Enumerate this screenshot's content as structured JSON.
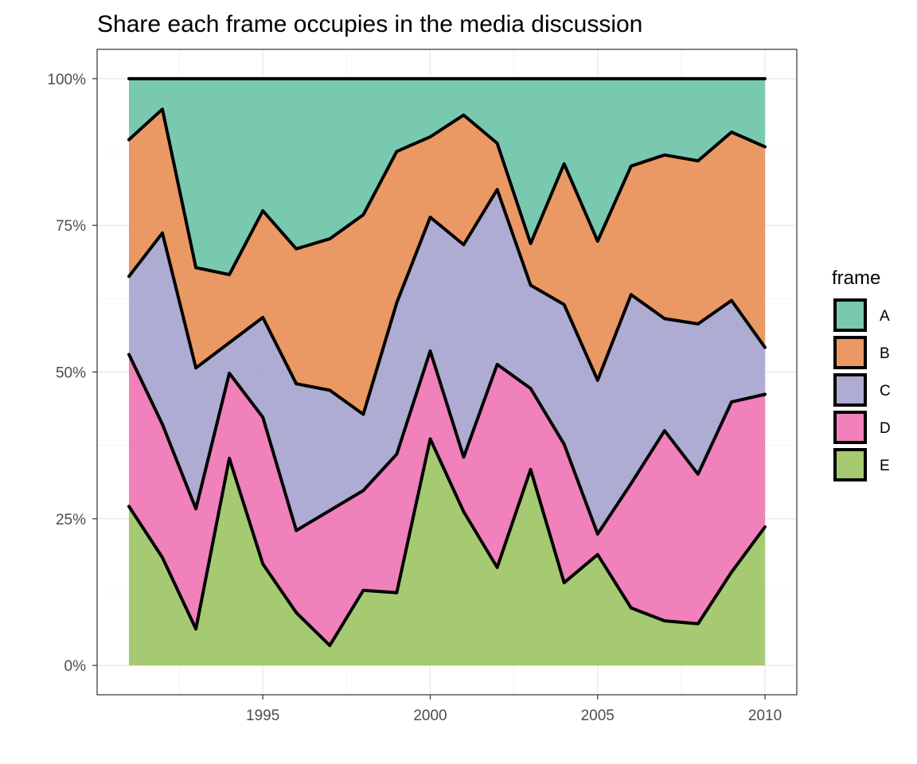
{
  "chart_data": {
    "type": "area",
    "stacked": "percent",
    "title": "Share each frame occupies in the media discussion",
    "xlabel": "",
    "ylabel": "",
    "x": [
      1991,
      1992,
      1993,
      1994,
      1995,
      1996,
      1997,
      1998,
      1999,
      2000,
      2001,
      2002,
      2003,
      2004,
      2005,
      2006,
      2007,
      2008,
      2009,
      2010
    ],
    "xlim": [
      1990.05,
      2010.95
    ],
    "ylim": [
      -0.05,
      1.05
    ],
    "x_ticks": [
      1995,
      2000,
      2005,
      2010
    ],
    "x_tick_labels": [
      "1995",
      "2000",
      "2005",
      "2010"
    ],
    "y_ticks": [
      0,
      0.25,
      0.5,
      0.75,
      1.0
    ],
    "y_tick_labels": [
      "0%",
      "25%",
      "50%",
      "75%",
      "100%"
    ],
    "grid": true,
    "legend": {
      "title": "frame",
      "position": "right"
    },
    "series": [
      {
        "name": "A",
        "color": "#66C2A5",
        "values": [
          0.104,
          0.052,
          0.322,
          0.334,
          0.225,
          0.29,
          0.273,
          0.232,
          0.124,
          0.099,
          0.062,
          0.11,
          0.281,
          0.145,
          0.277,
          0.149,
          0.13,
          0.14,
          0.091,
          0.116
        ]
      },
      {
        "name": "B",
        "color": "#E78B50",
        "values": [
          0.233,
          0.211,
          0.171,
          0.116,
          0.182,
          0.23,
          0.258,
          0.34,
          0.258,
          0.137,
          0.221,
          0.079,
          0.071,
          0.24,
          0.237,
          0.219,
          0.279,
          0.278,
          0.287,
          0.342
        ]
      },
      {
        "name": "C",
        "color": "#A3A1CC",
        "values": [
          0.133,
          0.326,
          0.24,
          0.052,
          0.17,
          0.25,
          0.205,
          0.13,
          0.258,
          0.228,
          0.362,
          0.298,
          0.176,
          0.238,
          0.262,
          0.322,
          0.191,
          0.256,
          0.173,
          0.08
        ]
      },
      {
        "name": "D",
        "color": "#EE6FB0",
        "values": [
          0.259,
          0.227,
          0.205,
          0.145,
          0.25,
          0.14,
          0.23,
          0.17,
          0.236,
          0.15,
          0.093,
          0.346,
          0.138,
          0.236,
          0.035,
          0.212,
          0.324,
          0.255,
          0.29,
          0.226
        ]
      },
      {
        "name": "E",
        "color": "#99C35F",
        "values": [
          0.271,
          0.184,
          0.062,
          0.353,
          0.173,
          0.09,
          0.034,
          0.128,
          0.124,
          0.386,
          0.262,
          0.167,
          0.334,
          0.141,
          0.189,
          0.098,
          0.076,
          0.071,
          0.159,
          0.236
        ]
      }
    ]
  }
}
